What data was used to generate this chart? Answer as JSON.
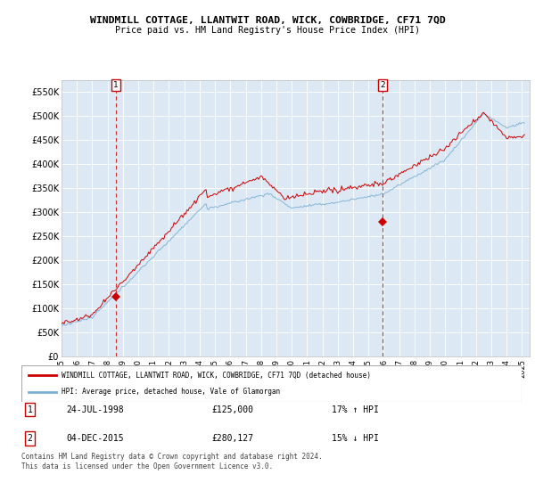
{
  "title": "WINDMILL COTTAGE, LLANTWIT ROAD, WICK, COWBRIDGE, CF71 7QD",
  "subtitle": "Price paid vs. HM Land Registry's House Price Index (HPI)",
  "ylim": [
    0,
    575000
  ],
  "yticks": [
    0,
    50000,
    100000,
    150000,
    200000,
    250000,
    300000,
    350000,
    400000,
    450000,
    500000,
    550000
  ],
  "background_color": "#ffffff",
  "chart_bg_color": "#dce9f5",
  "grid_color": "#ffffff",
  "red_line_color": "#cc0000",
  "blue_line_color": "#7aafd4",
  "transaction1": {
    "year": 1998.56,
    "price": 125000,
    "label": "1",
    "hpi_pct": "17% ↑ HPI"
  },
  "transaction2": {
    "year": 2015.92,
    "price": 280127,
    "label": "2",
    "hpi_pct": "15% ↓ HPI"
  },
  "legend_red": "WINDMILL COTTAGE, LLANTWIT ROAD, WICK, COWBRIDGE, CF71 7QD (detached house)",
  "legend_blue": "HPI: Average price, detached house, Vale of Glamorgan",
  "footer": "Contains HM Land Registry data © Crown copyright and database right 2024.\nThis data is licensed under the Open Government Licence v3.0.",
  "annotation1_date_str": "24-JUL-1998",
  "annotation1_price_str": "£125,000",
  "annotation2_date_str": "04-DEC-2015",
  "annotation2_price_str": "£280,127",
  "hpi_arrow": "17% ↑ HPI",
  "hpi_arrow2": "15% ↓ HPI"
}
